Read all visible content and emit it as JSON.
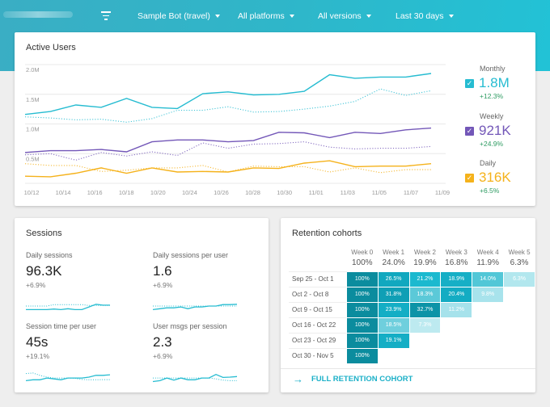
{
  "header": {
    "filter_icon": "filter-icon",
    "selectors": [
      {
        "label": "Sample Bot (travel)"
      },
      {
        "label": "All platforms"
      },
      {
        "label": "All versions"
      },
      {
        "label": "Last 30 days"
      }
    ]
  },
  "active_users": {
    "title": "Active Users",
    "legend": [
      {
        "label": "Monthly",
        "value": "1.8M",
        "change": "+12.3%",
        "color": "#26bcd1"
      },
      {
        "label": "Weekly",
        "value": "921K",
        "change": "+24.9%",
        "color": "#7357b8"
      },
      {
        "label": "Daily",
        "value": "316K",
        "change": "+6.5%",
        "color": "#f5b21b"
      }
    ]
  },
  "chart_data": {
    "type": "line",
    "title": "Active Users",
    "ylim": [
      0,
      2.0
    ],
    "y_ticks": [
      "2.0M",
      "1.5M",
      "1.0M",
      "0.5M"
    ],
    "grid": true,
    "x_ticks": [
      "10/12",
      "10/14",
      "10/16",
      "10/18",
      "10/20",
      "10/24",
      "10/26",
      "10/28",
      "10/30",
      "11/01",
      "11/03",
      "11/05",
      "11/07",
      "11/09"
    ],
    "series": [
      {
        "name": "Monthly",
        "style": "solid",
        "color": "#26bcd1",
        "values": [
          1.16,
          1.21,
          1.32,
          1.28,
          1.43,
          1.28,
          1.26,
          1.51,
          1.54,
          1.49,
          1.5,
          1.55,
          1.83,
          1.77,
          1.79,
          1.79,
          1.85
        ]
      },
      {
        "name": "Monthly",
        "style": "dotted",
        "color": "#26bcd1",
        "values": [
          1.12,
          1.1,
          1.07,
          1.08,
          1.03,
          1.09,
          1.23,
          1.23,
          1.29,
          1.2,
          1.21,
          1.25,
          1.3,
          1.38,
          1.59,
          1.48,
          1.56
        ]
      },
      {
        "name": "Weekly",
        "style": "solid",
        "color": "#7357b8",
        "values": [
          0.52,
          0.55,
          0.55,
          0.57,
          0.53,
          0.7,
          0.73,
          0.73,
          0.7,
          0.72,
          0.86,
          0.85,
          0.77,
          0.86,
          0.84,
          0.9,
          0.93
        ]
      },
      {
        "name": "Weekly",
        "style": "dotted",
        "color": "#7357b8",
        "values": [
          0.48,
          0.5,
          0.39,
          0.52,
          0.46,
          0.53,
          0.47,
          0.68,
          0.59,
          0.66,
          0.67,
          0.7,
          0.61,
          0.58,
          0.59,
          0.59,
          0.62
        ]
      },
      {
        "name": "Daily",
        "style": "solid",
        "color": "#f5b21b",
        "values": [
          0.12,
          0.11,
          0.17,
          0.26,
          0.17,
          0.26,
          0.19,
          0.2,
          0.19,
          0.26,
          0.25,
          0.34,
          0.38,
          0.28,
          0.29,
          0.29,
          0.33
        ]
      },
      {
        "name": "Daily",
        "style": "dotted",
        "color": "#f5b21b",
        "values": [
          0.33,
          0.3,
          0.3,
          0.2,
          0.22,
          0.26,
          0.26,
          0.3,
          0.19,
          0.29,
          0.28,
          0.28,
          0.19,
          0.26,
          0.18,
          0.23,
          0.23
        ]
      }
    ]
  },
  "sessions": {
    "title": "Sessions",
    "metrics": [
      {
        "label": "Daily sessions",
        "value": "96.3K",
        "change": "+6.9%",
        "solid": [
          3,
          3,
          3,
          3,
          3.3,
          3,
          3.5,
          3,
          3,
          4.5,
          6,
          5.5,
          5.5
        ],
        "dotted": [
          5,
          5,
          5,
          5,
          5.8,
          5.8,
          5.8,
          5.8,
          5.8,
          5.3,
          5.3,
          5.3,
          5.3
        ]
      },
      {
        "label": "Daily sessions per user",
        "value": "1.6",
        "change": "+6.9%",
        "solid": [
          3,
          3.5,
          4,
          4,
          4.5,
          3.5,
          4.5,
          4.5,
          5,
          5,
          5.8,
          5.8,
          6
        ],
        "dotted": [
          5,
          5,
          5,
          5,
          5,
          5,
          5,
          5,
          5,
          5,
          5,
          5,
          5
        ]
      },
      {
        "label": "Session time per user",
        "value": "45s",
        "change": "+19.1%",
        "solid": [
          3,
          3.5,
          3.5,
          4.5,
          4,
          3.5,
          4.5,
          4.5,
          4.5,
          5,
          6,
          6,
          6.3
        ],
        "dotted": [
          7,
          7.3,
          6,
          5,
          4.5,
          4.5,
          4.5,
          4.3,
          3.7,
          3.5,
          3.5,
          3.6,
          3.6
        ]
      },
      {
        "label": "User msgs per session",
        "value": "2.3",
        "change": "+6.9%",
        "solid": [
          2.5,
          3,
          4.5,
          3.3,
          4.5,
          3.5,
          3.5,
          4.5,
          4.5,
          6.5,
          4.8,
          5,
          5.3
        ],
        "dotted": [
          4.5,
          4.5,
          4.5,
          4.5,
          4.5,
          4.5,
          4.5,
          4.5,
          4.5,
          4,
          3.3,
          3,
          3
        ]
      }
    ]
  },
  "retention": {
    "title": "Retention cohorts",
    "weeks": [
      {
        "label": "Week 0",
        "pct": "100%"
      },
      {
        "label": "Week 1",
        "pct": "24.0%"
      },
      {
        "label": "Week 2",
        "pct": "19.9%"
      },
      {
        "label": "Week 3",
        "pct": "16.8%"
      },
      {
        "label": "Week 4",
        "pct": "11.9%"
      },
      {
        "label": "Week 5",
        "pct": "6.3%"
      }
    ],
    "rows": [
      {
        "label": "Sep 25 - Oct 1",
        "cells": [
          {
            "v": "100%",
            "c": "#0b8c9e"
          },
          {
            "v": "26.5%",
            "c": "#11a8bf"
          },
          {
            "v": "21.2%",
            "c": "#1bb9cf"
          },
          {
            "v": "18.9%",
            "c": "#16afc6"
          },
          {
            "v": "14.0%",
            "c": "#52c7d7"
          },
          {
            "v": "6.3%",
            "c": "#b2e7ee"
          }
        ]
      },
      {
        "label": "Oct 2 - Oct 8",
        "cells": [
          {
            "v": "100%",
            "c": "#0b8c9e"
          },
          {
            "v": "31.8%",
            "c": "#0f9fb5"
          },
          {
            "v": "18.3%",
            "c": "#5bc9d8"
          },
          {
            "v": "20.4%",
            "c": "#13acc3"
          },
          {
            "v": "9.8%",
            "c": "#a8e3ec"
          }
        ]
      },
      {
        "label": "Oct 9 - Oct 15",
        "cells": [
          {
            "v": "100%",
            "c": "#0b8c9e"
          },
          {
            "v": "23.9%",
            "c": "#14aec5"
          },
          {
            "v": "32.7%",
            "c": "#0c93a7"
          },
          {
            "v": "11.2%",
            "c": "#a6e2eb"
          }
        ]
      },
      {
        "label": "Oct 16 - Oct 22",
        "cells": [
          {
            "v": "100%",
            "c": "#0b8c9e"
          },
          {
            "v": "18.5%",
            "c": "#6fcfdd"
          },
          {
            "v": "7.3%",
            "c": "#bdeaf0"
          }
        ]
      },
      {
        "label": "Oct 23 - Oct 29",
        "cells": [
          {
            "v": "100%",
            "c": "#0b8c9e"
          },
          {
            "v": "19.1%",
            "c": "#15aec5"
          }
        ]
      },
      {
        "label": "Oct 30 - Nov 5",
        "cells": [
          {
            "v": "100%",
            "c": "#0b8c9e"
          }
        ]
      }
    ],
    "link": "FULL RETENTION COHORT",
    "link_icon": "arrow-right-icon"
  }
}
